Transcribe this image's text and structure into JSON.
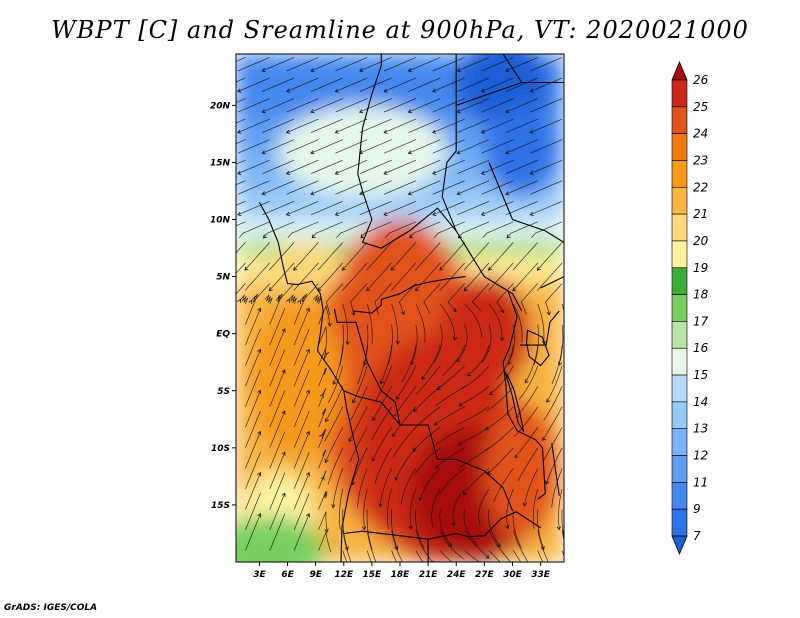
{
  "title": "WBPT [C] and Sreamline at 900hPa, VT: 2020021000",
  "credit": "GrADS: IGES/COLA",
  "chart_data": {
    "type": "heatmap",
    "title": "WBPT [C] and Sreamline at 900hPa, VT: 2020021000",
    "variable": "wet-bulb potential temperature with streamlines",
    "level": "900hPa",
    "valid_time": "2020021000",
    "units": "C",
    "x_ticks": [
      "3E",
      "6E",
      "9E",
      "12E",
      "15E",
      "18E",
      "21E",
      "24E",
      "27E",
      "30E",
      "33E"
    ],
    "x_tick_values": [
      3,
      6,
      9,
      12,
      15,
      18,
      21,
      24,
      27,
      30,
      33
    ],
    "y_ticks": [
      "20N",
      "15N",
      "10N",
      "5N",
      "EQ",
      "5S",
      "10S",
      "15S"
    ],
    "y_tick_values": [
      20,
      15,
      10,
      5,
      0,
      -5,
      -10,
      -15
    ],
    "xlim": [
      0.5,
      35.5
    ],
    "ylim": [
      -20,
      24.5
    ],
    "colorbar": {
      "levels": [
        7,
        9,
        11,
        12,
        13,
        14,
        15,
        16,
        17,
        18,
        19,
        20,
        21,
        22,
        23,
        24,
        25,
        26
      ],
      "colors": [
        "#1c5fd6",
        "#2d72e6",
        "#4488ef",
        "#5e9ef3",
        "#7ab4f6",
        "#96c8f8",
        "#b3dafa",
        "#e6f7ea",
        "#b7e5a6",
        "#78cf5e",
        "#3cae35",
        "#fff3a0",
        "#fbd87a",
        "#f7b442",
        "#f59a1a",
        "#ef7a14",
        "#e2531a",
        "#cc2a18",
        "#a80e0e"
      ],
      "extend": "both"
    },
    "field_summary": {
      "north_of_10N": "7-14 C (blue), coldest near 20-24N",
      "5N_to_10N": "15-19 C (light yellow/green band)",
      "equator_to_5N": "21-24 C",
      "central_congo_basin": "24-26 C (dark red)",
      "southwest_coast_15S_20S": "16-20 C (green/yellow)"
    }
  }
}
